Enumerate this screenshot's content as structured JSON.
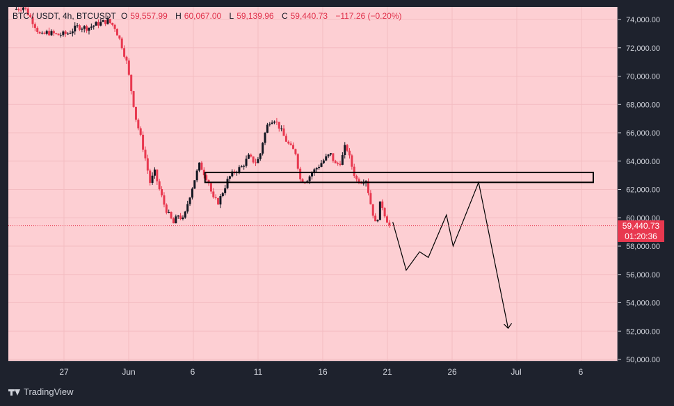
{
  "legend": {
    "symbol": "BTC / USDT, 4h, BTCUSDT",
    "o_label": "O",
    "o_val": "59,557.99",
    "h_label": "H",
    "h_val": "60,067.00",
    "l_label": "L",
    "l_val": "59,139.96",
    "c_label": "C",
    "c_val": "59,440.73",
    "change": "−117.26 (−0.20%)"
  },
  "price_tag": {
    "price": "59,440.73",
    "countdown": "01:20:36"
  },
  "footer": {
    "brand": "TradingView"
  },
  "colors": {
    "background": "#fdcfd3",
    "candle_up": "#131722",
    "candle_down": "#e8384f",
    "last_price_line": "#e8384f",
    "axis_bg": "#1e222d"
  },
  "chart_data": {
    "type": "candlestick",
    "y_ticks": [
      "74,000.00",
      "72,000.00",
      "70,000.00",
      "68,000.00",
      "66,000.00",
      "64,000.00",
      "62,000.00",
      "60,000.00",
      "58,000.00",
      "56,000.00",
      "54,000.00",
      "52,000.00",
      "50,000.00"
    ],
    "ylim": [
      50000,
      75000
    ],
    "x_ticks": [
      "27",
      "Jun",
      "6",
      "11",
      "16",
      "21",
      "26",
      "Jul",
      "6"
    ],
    "last_price": 59440.73,
    "price_series": [
      [
        0,
        74700
      ],
      [
        1.5,
        74900
      ],
      [
        3,
        73700
      ],
      [
        4,
        72800
      ],
      [
        5,
        73100
      ],
      [
        6.5,
        72900
      ],
      [
        8,
        73000
      ],
      [
        9.5,
        73500
      ],
      [
        11,
        73400
      ],
      [
        12.5,
        73700
      ],
      [
        14,
        73900
      ],
      [
        15,
        73500
      ],
      [
        16,
        72300
      ],
      [
        16.8,
        71000
      ],
      [
        17.5,
        69000
      ],
      [
        18.2,
        67000
      ],
      [
        19,
        65500
      ],
      [
        19.6,
        64200
      ],
      [
        20.3,
        62500
      ],
      [
        21,
        63200
      ],
      [
        21.7,
        62000
      ],
      [
        22.5,
        60800
      ],
      [
        23.3,
        60000
      ],
      [
        23.8,
        59600
      ],
      [
        24.5,
        60200
      ],
      [
        25.3,
        59800
      ],
      [
        26,
        61200
      ],
      [
        27,
        62800
      ],
      [
        27.7,
        63800
      ],
      [
        28.3,
        63200
      ],
      [
        29,
        62600
      ],
      [
        29.7,
        61300
      ],
      [
        30.5,
        61100
      ],
      [
        31.3,
        62000
      ],
      [
        32,
        62800
      ],
      [
        33,
        63300
      ],
      [
        34,
        63600
      ],
      [
        35,
        64300
      ],
      [
        36,
        63900
      ],
      [
        36.6,
        64200
      ],
      [
        37.2,
        65600
      ],
      [
        38,
        66800
      ],
      [
        38.8,
        67000
      ],
      [
        39.6,
        66400
      ],
      [
        40.4,
        65600
      ],
      [
        41.2,
        65000
      ],
      [
        42,
        64600
      ],
      [
        42.7,
        62700
      ],
      [
        43.5,
        62600
      ],
      [
        44.5,
        63200
      ],
      [
        45.5,
        63700
      ],
      [
        46.5,
        64200
      ],
      [
        47.2,
        64500
      ],
      [
        48,
        63700
      ],
      [
        48.8,
        64000
      ],
      [
        49.5,
        65200
      ],
      [
        50.3,
        63800
      ],
      [
        51,
        62700
      ],
      [
        51.7,
        62600
      ],
      [
        52.5,
        62700
      ],
      [
        53.2,
        61000
      ],
      [
        54,
        59400
      ],
      [
        54.7,
        61200
      ],
      [
        55.4,
        60100
      ],
      [
        56,
        59440
      ]
    ],
    "x_range": [
      0,
      89
    ],
    "resistance_zone": {
      "x_from": 28.5,
      "x_to": 86.4,
      "low": 62500,
      "high": 63200
    },
    "projection_path": [
      [
        56.5,
        59700
      ],
      [
        58.5,
        56300
      ],
      [
        60.5,
        57600
      ],
      [
        61.8,
        57200
      ],
      [
        64.5,
        60200
      ],
      [
        65.5,
        58000
      ],
      [
        69.3,
        62500
      ],
      [
        73.7,
        52200
      ]
    ]
  }
}
